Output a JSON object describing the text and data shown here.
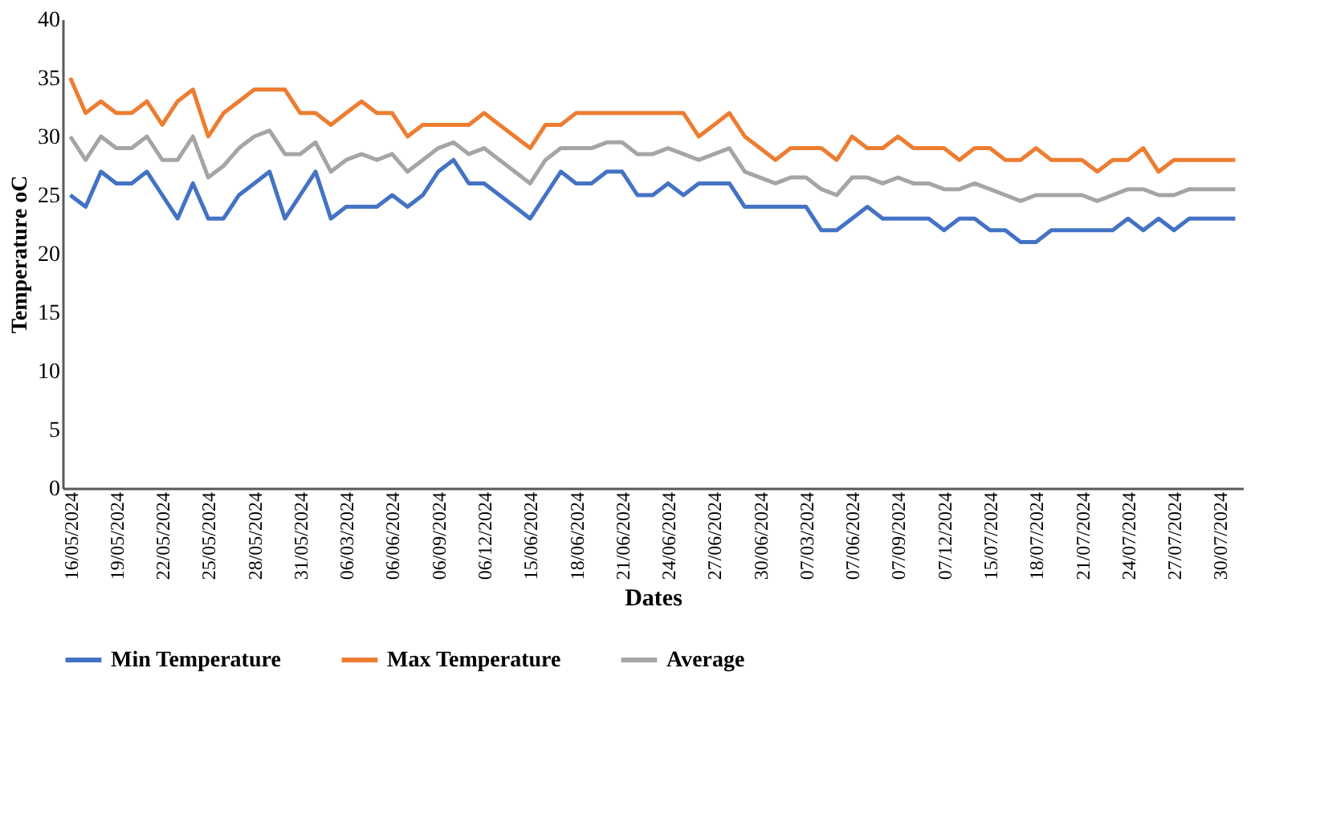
{
  "chart_data": {
    "type": "line",
    "xlabel": "Dates",
    "ylabel": "Temperature  oC",
    "categories": [
      "16/05/2024",
      null,
      null,
      "19/05/2024",
      null,
      null,
      "22/05/2024",
      null,
      null,
      "25/05/2024",
      null,
      null,
      "28/05/2024",
      null,
      null,
      "31/05/2024",
      null,
      null,
      "06/03/2024",
      null,
      null,
      "06/06/2024",
      null,
      null,
      "06/09/2024",
      null,
      null,
      "06/12/2024",
      null,
      null,
      "15/06/2024",
      null,
      null,
      "18/06/2024",
      null,
      null,
      "21/06/2024",
      null,
      null,
      "24/06/2024",
      null,
      null,
      "27/06/2024",
      null,
      null,
      "30/06/2024",
      null,
      null,
      "07/03/2024",
      null,
      null,
      "07/06/2024",
      null,
      null,
      "07/09/2024",
      null,
      null,
      "07/12/2024",
      null,
      null,
      "15/07/2024",
      null,
      null,
      "18/07/2024",
      null,
      null,
      "21/07/2024",
      null,
      null,
      "24/07/2024",
      null,
      null,
      "27/07/2024",
      null,
      null,
      "30/07/2024",
      null
    ],
    "series": [
      {
        "name": "Min Temperature",
        "color": "#4472c4",
        "values": [
          25,
          24,
          27,
          26,
          26,
          27,
          25,
          23,
          26,
          23,
          23,
          25,
          26,
          27,
          23,
          25,
          27,
          23,
          24,
          24,
          24,
          25,
          24,
          25,
          27,
          28,
          26,
          26,
          25,
          24,
          23,
          25,
          27,
          26,
          26,
          27,
          27,
          25,
          25,
          26,
          25,
          26,
          26,
          26,
          24,
          24,
          24,
          24,
          24,
          22,
          22,
          23,
          24,
          23,
          23,
          23,
          23,
          22,
          23,
          23,
          22,
          22,
          21,
          21,
          22,
          22,
          22,
          22,
          22,
          23,
          22,
          23,
          22,
          23,
          23,
          23,
          23
        ]
      },
      {
        "name": "Max Temperature",
        "color": "#ed7d31",
        "values": [
          35,
          32,
          33,
          32,
          32,
          33,
          31,
          33,
          34,
          30,
          32,
          33,
          34,
          34,
          34,
          32,
          32,
          31,
          32,
          33,
          32,
          32,
          30,
          31,
          31,
          31,
          31,
          32,
          31,
          30,
          29,
          31,
          31,
          32,
          32,
          32,
          32,
          32,
          32,
          32,
          32,
          30,
          31,
          32,
          30,
          29,
          28,
          29,
          29,
          29,
          28,
          30,
          29,
          29,
          30,
          29,
          29,
          29,
          28,
          29,
          29,
          28,
          28,
          29,
          28,
          28,
          28,
          27,
          28,
          28,
          29,
          27,
          28,
          28,
          28,
          28,
          28
        ]
      },
      {
        "name": "Average",
        "color": "#a5a5a5",
        "values": [
          30,
          28,
          30,
          29,
          29,
          30,
          28,
          28,
          30,
          26.5,
          27.5,
          29,
          30,
          30.5,
          28.5,
          28.5,
          29.5,
          27,
          28,
          28.5,
          28,
          28.5,
          27,
          28,
          29,
          29.5,
          28.5,
          29,
          28,
          27,
          26,
          28,
          29,
          29,
          29,
          29.5,
          29.5,
          28.5,
          28.5,
          29,
          28.5,
          28,
          28.5,
          29,
          27,
          26.5,
          26,
          26.5,
          26.5,
          25.5,
          25,
          26.5,
          26.5,
          26,
          26.5,
          26,
          26,
          25.5,
          25.5,
          26,
          25.5,
          25,
          24.5,
          25,
          25,
          25,
          25,
          24.5,
          25,
          25.5,
          25.5,
          25,
          25,
          25.5,
          25.5,
          25.5,
          25.5
        ]
      }
    ],
    "ylim": [
      0,
      40
    ],
    "yticks": [
      0,
      5,
      10,
      15,
      20,
      25,
      30,
      35,
      40
    ],
    "grid": false,
    "legend": "bottom",
    "marker": "none",
    "line_style": "solid"
  }
}
